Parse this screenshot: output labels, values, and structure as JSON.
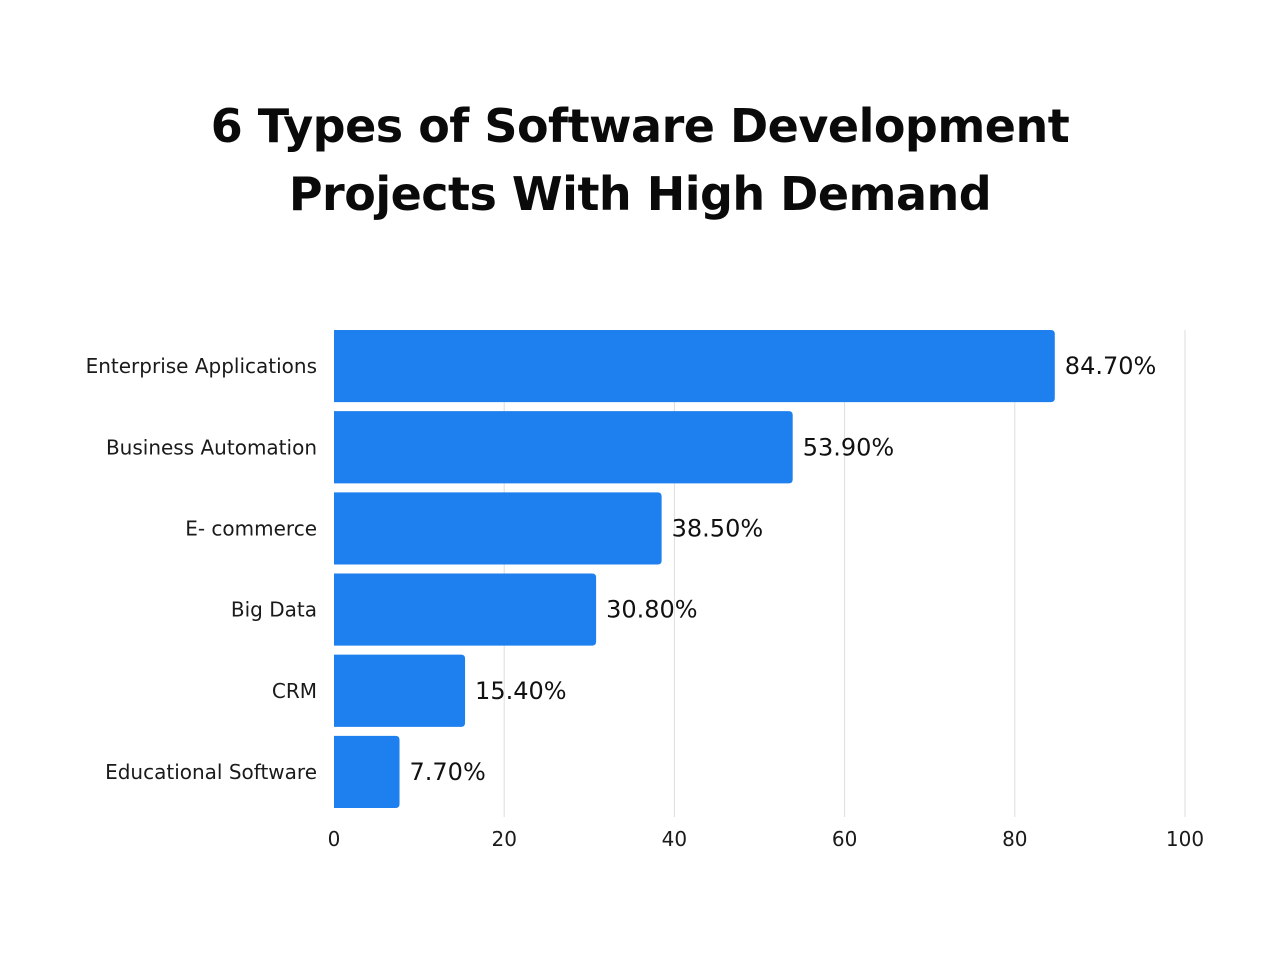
{
  "chart_data": {
    "type": "bar",
    "orientation": "horizontal",
    "title_lines": [
      "6 Types of Software Development",
      "Projects With High Demand"
    ],
    "categories": [
      "Enterprise Applications",
      "Business Automation",
      "E- commerce",
      "Big Data",
      "CRM",
      "Educational Software"
    ],
    "values": [
      84.7,
      53.9,
      38.5,
      30.8,
      15.4,
      7.7
    ],
    "value_labels": [
      "84.70%",
      "53.90%",
      "38.50%",
      "30.80%",
      "15.40%",
      "7.70%"
    ],
    "xlabel": "",
    "ylabel": "",
    "xlim": [
      0,
      100
    ],
    "x_ticks": [
      0,
      20,
      40,
      60,
      80,
      100
    ],
    "x_tick_labels": [
      "0",
      "20",
      "40",
      "60",
      "80",
      "100"
    ],
    "grid": "vertical",
    "legend": "none",
    "bar_color": "#1E80EF",
    "grid_color": "#DDDDDD"
  }
}
